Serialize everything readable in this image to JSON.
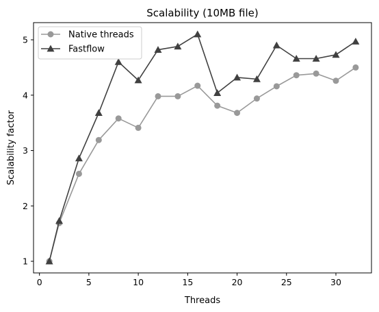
{
  "chart_data": {
    "type": "line",
    "title": "Scalability (10MB file)",
    "xlabel": "Threads",
    "ylabel": "Scalability factor",
    "xlim": [
      -0.6,
      33.6
    ],
    "ylim": [
      0.79,
      5.31
    ],
    "xticks": [
      0,
      5,
      10,
      15,
      20,
      25,
      30
    ],
    "yticks": [
      1,
      2,
      3,
      4,
      5
    ],
    "grid": false,
    "legend_position": "top-left",
    "series": [
      {
        "name": "Native threads",
        "color": "#999999",
        "marker": "circle",
        "x": [
          1,
          2,
          4,
          6,
          8,
          10,
          12,
          14,
          16,
          18,
          20,
          22,
          24,
          26,
          28,
          30,
          32
        ],
        "y": [
          1.0,
          1.69,
          2.58,
          3.19,
          3.58,
          3.41,
          3.98,
          3.98,
          4.17,
          3.81,
          3.68,
          3.94,
          4.16,
          4.36,
          4.39,
          4.26,
          4.5
        ]
      },
      {
        "name": "Fastflow",
        "color": "#404040",
        "marker": "triangle",
        "x": [
          1,
          2,
          4,
          6,
          8,
          10,
          12,
          14,
          16,
          18,
          20,
          22,
          24,
          26,
          28,
          30,
          32
        ],
        "y": [
          1.0,
          1.73,
          2.86,
          3.68,
          4.6,
          4.27,
          4.82,
          4.88,
          5.1,
          4.04,
          4.32,
          4.29,
          4.9,
          4.66,
          4.66,
          4.73,
          4.97
        ]
      }
    ]
  }
}
